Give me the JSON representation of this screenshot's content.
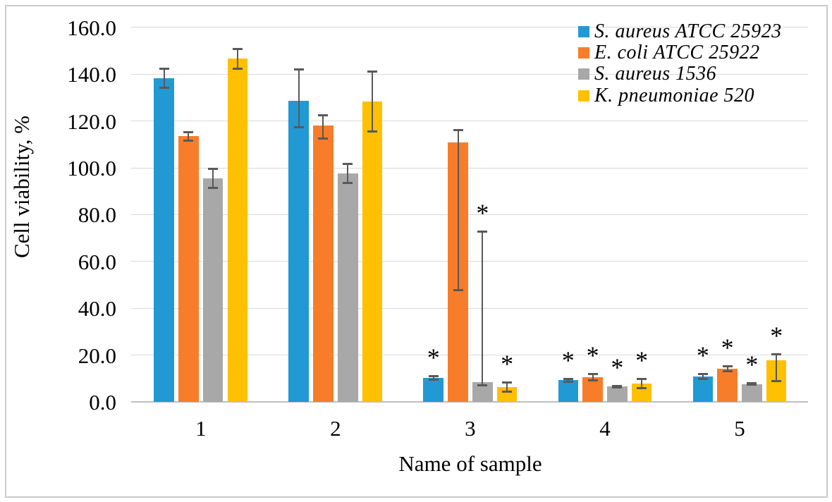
{
  "figure": {
    "background": "#ffffff",
    "border_color": "#cbcbcb",
    "gridline_color": "#d9d9d9",
    "axisline_color": "#bfbfbf",
    "error_bar_color": "#595959",
    "significance_marker": "*"
  },
  "chart_data": {
    "type": "bar",
    "title": "",
    "xlabel": "Name of sample",
    "ylabel": "Cell viability, %",
    "categories": [
      "1",
      "2",
      "3",
      "4",
      "5"
    ],
    "ylim": [
      0,
      160
    ],
    "ytick_step": 20,
    "ytick_labels": [
      "0.0",
      "20.0",
      "40.0",
      "60.0",
      "80.0",
      "100.0",
      "120.0",
      "140.0",
      "160.0"
    ],
    "grid": true,
    "legend_position": "top-right-inside",
    "legend_marker": "square",
    "series": [
      {
        "name": "S. aureus ATCC 25923",
        "color": "#2199d4",
        "values": [
          138.3,
          128.6,
          10.3,
          9.2,
          10.8
        ],
        "err_up": [
          4.2,
          13.5,
          0.9,
          0.7,
          1.3
        ],
        "err_down": [
          4.2,
          11.5,
          0.9,
          0.7,
          1.3
        ],
        "significant": [
          false,
          false,
          true,
          true,
          true
        ]
      },
      {
        "name": "E. coli ATCC 25922",
        "color": "#f87d2b",
        "values": [
          113.5,
          118.0,
          110.8,
          10.4,
          14.2
        ],
        "err_up": [
          2.0,
          4.7,
          5.5,
          1.5,
          1.1
        ],
        "err_down": [
          2.0,
          5.5,
          63.2,
          1.5,
          1.1
        ],
        "significant": [
          false,
          false,
          false,
          true,
          true
        ]
      },
      {
        "name": "S. aureus 1536",
        "color": "#a8a8a8",
        "values": [
          95.5,
          97.6,
          8.3,
          6.5,
          7.6
        ],
        "err_up": [
          4.2,
          4.3,
          64.5,
          0.5,
          0.5
        ],
        "err_down": [
          4.2,
          4.3,
          1.3,
          0.5,
          0.5
        ],
        "significant": [
          false,
          false,
          true,
          true,
          true
        ]
      },
      {
        "name": "K. pneumoniae 520",
        "color": "#ffc000",
        "values": [
          146.6,
          128.3,
          6.3,
          7.8,
          17.7
        ],
        "err_up": [
          4.4,
          13.0,
          2.0,
          2.1,
          2.8
        ],
        "err_down": [
          4.4,
          13.0,
          2.0,
          2.1,
          9.0
        ],
        "significant": [
          false,
          false,
          true,
          true,
          true
        ]
      }
    ]
  }
}
